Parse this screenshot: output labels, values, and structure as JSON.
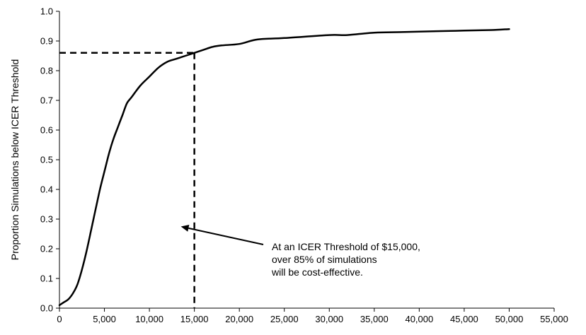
{
  "chart_data": {
    "type": "line",
    "title": "",
    "xlabel": "",
    "ylabel": "Proportion Simulations below ICER Threshold",
    "xlim": [
      0,
      55000
    ],
    "ylim": [
      0.0,
      1.0
    ],
    "grid": false,
    "legend": "none",
    "x_ticks": [
      "0",
      "5,000",
      "10,000",
      "15,000",
      "20,000",
      "25,000",
      "30,000",
      "35,000",
      "40,000",
      "45,000",
      "50,000",
      "55,000"
    ],
    "y_ticks": [
      "0.0",
      "0.1",
      "0.2",
      "0.3",
      "0.4",
      "0.5",
      "0.6",
      "0.7",
      "0.8",
      "0.9",
      "1.0"
    ],
    "series": [
      {
        "x": [
          0,
          500,
          1000,
          1500,
          2000,
          2500,
          3000,
          3500,
          4000,
          4500,
          5000,
          5500,
          6000,
          6500,
          7000,
          7500,
          8000,
          9000,
          10000,
          11000,
          12000,
          13000,
          14000,
          15000,
          16000,
          17000,
          18000,
          20000,
          22000,
          25000,
          30000,
          32000,
          35000,
          38000,
          42000,
          45000,
          48000,
          50000
        ],
        "y": [
          0.01,
          0.02,
          0.03,
          0.05,
          0.08,
          0.13,
          0.19,
          0.26,
          0.33,
          0.4,
          0.46,
          0.52,
          0.57,
          0.61,
          0.65,
          0.69,
          0.71,
          0.75,
          0.78,
          0.81,
          0.83,
          0.84,
          0.85,
          0.86,
          0.87,
          0.88,
          0.885,
          0.89,
          0.905,
          0.91,
          0.92,
          0.92,
          0.928,
          0.93,
          0.933,
          0.935,
          0.937,
          0.94
        ]
      }
    ],
    "reference_lines": {
      "threshold_x": 15000,
      "threshold_y": 0.86
    },
    "annotation": {
      "lines": [
        "At an ICER Threshold of $15,000,",
        "over 85% of simulations",
        "will be cost-effective."
      ],
      "arrow_tip": [
        13500,
        0.275
      ]
    }
  }
}
